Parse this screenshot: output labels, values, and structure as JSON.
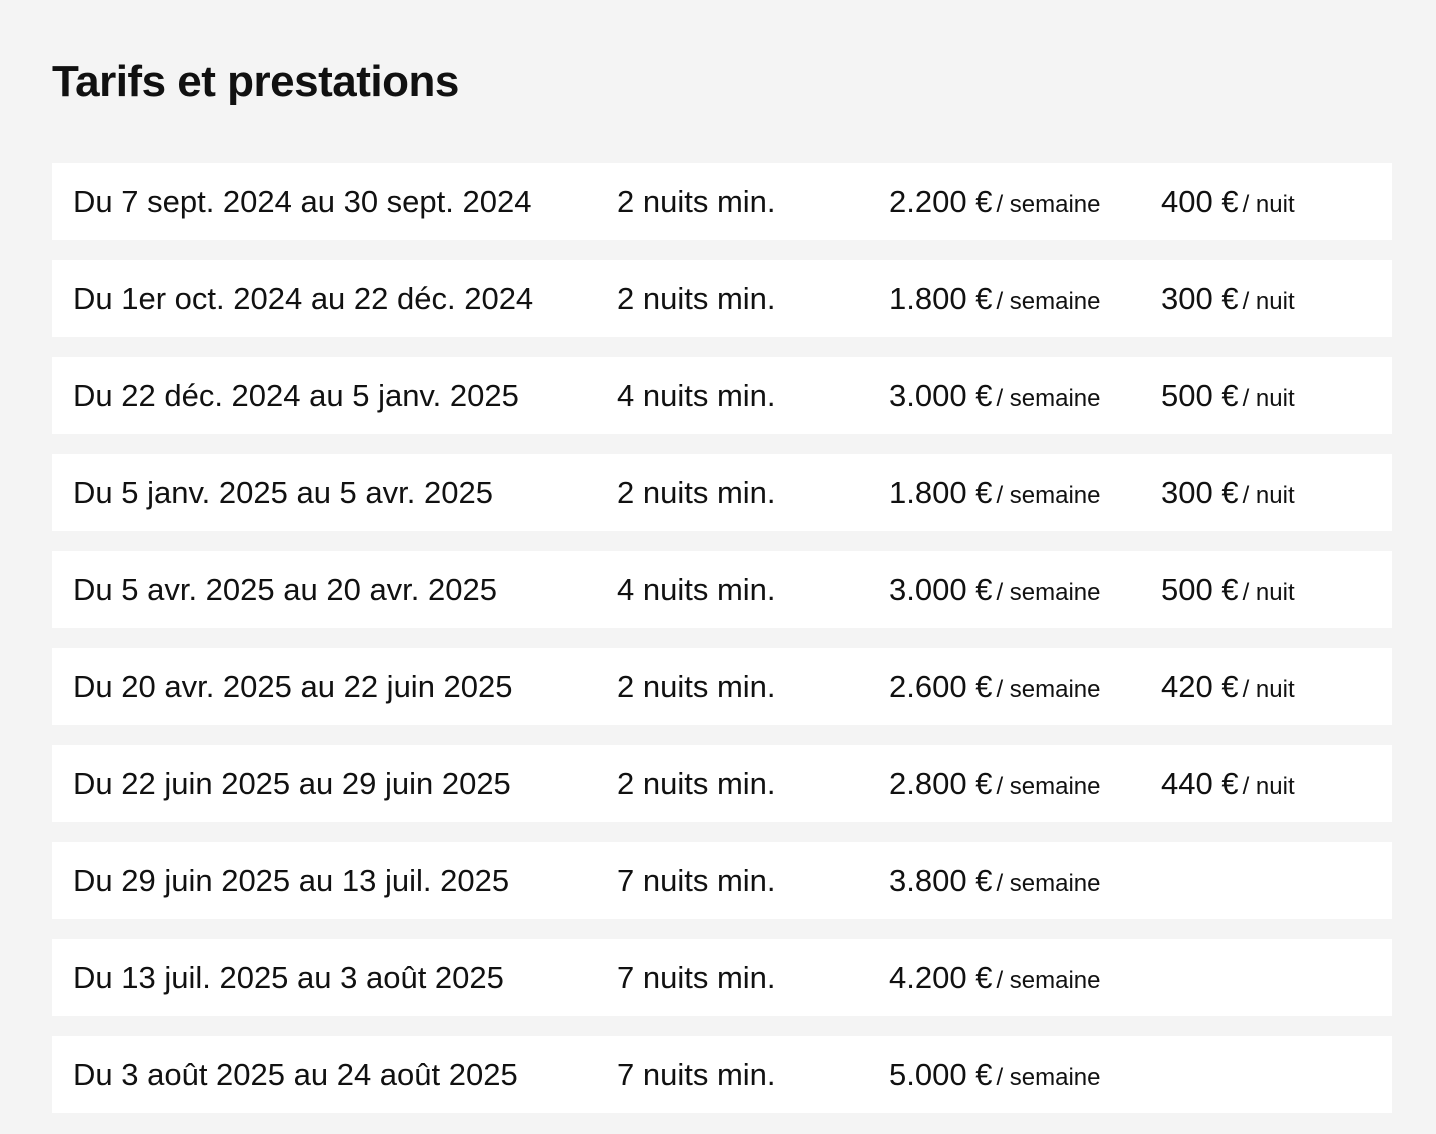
{
  "title": "Tarifs et prestations",
  "rows": [
    {
      "period": "Du 7 sept. 2024 au 30 sept. 2024",
      "min_nights": "2 nuits min.",
      "week_price": "2.200 €",
      "week_unit": "/ semaine",
      "night_price": "400 €",
      "night_unit": "/ nuit"
    },
    {
      "period": "Du 1er oct. 2024 au 22 déc. 2024",
      "min_nights": "2 nuits min.",
      "week_price": "1.800 €",
      "week_unit": "/ semaine",
      "night_price": "300 €",
      "night_unit": "/ nuit"
    },
    {
      "period": "Du 22 déc. 2024 au 5 janv. 2025",
      "min_nights": "4 nuits min.",
      "week_price": "3.000 €",
      "week_unit": "/ semaine",
      "night_price": "500 €",
      "night_unit": "/ nuit"
    },
    {
      "period": "Du 5 janv. 2025 au 5 avr. 2025",
      "min_nights": "2 nuits min.",
      "week_price": "1.800 €",
      "week_unit": "/ semaine",
      "night_price": "300 €",
      "night_unit": "/ nuit"
    },
    {
      "period": "Du 5 avr. 2025 au 20 avr. 2025",
      "min_nights": "4 nuits min.",
      "week_price": "3.000 €",
      "week_unit": "/ semaine",
      "night_price": "500 €",
      "night_unit": "/ nuit"
    },
    {
      "period": "Du 20 avr. 2025 au 22 juin 2025",
      "min_nights": "2 nuits min.",
      "week_price": "2.600 €",
      "week_unit": "/ semaine",
      "night_price": "420 €",
      "night_unit": "/ nuit"
    },
    {
      "period": "Du 22 juin 2025 au 29 juin 2025",
      "min_nights": "2 nuits min.",
      "week_price": "2.800 €",
      "week_unit": "/ semaine",
      "night_price": "440 €",
      "night_unit": "/ nuit"
    },
    {
      "period": "Du 29 juin 2025 au 13 juil. 2025",
      "min_nights": "7 nuits min.",
      "week_price": "3.800 €",
      "week_unit": "/ semaine",
      "night_price": "",
      "night_unit": ""
    },
    {
      "period": "Du 13 juil. 2025 au 3 août 2025",
      "min_nights": "7 nuits min.",
      "week_price": "4.200 €",
      "week_unit": "/ semaine",
      "night_price": "",
      "night_unit": ""
    },
    {
      "period": "Du 3 août 2025 au 24 août 2025",
      "min_nights": "7 nuits min.",
      "week_price": "5.000 €",
      "week_unit": "/ semaine",
      "night_price": "",
      "night_unit": ""
    }
  ]
}
